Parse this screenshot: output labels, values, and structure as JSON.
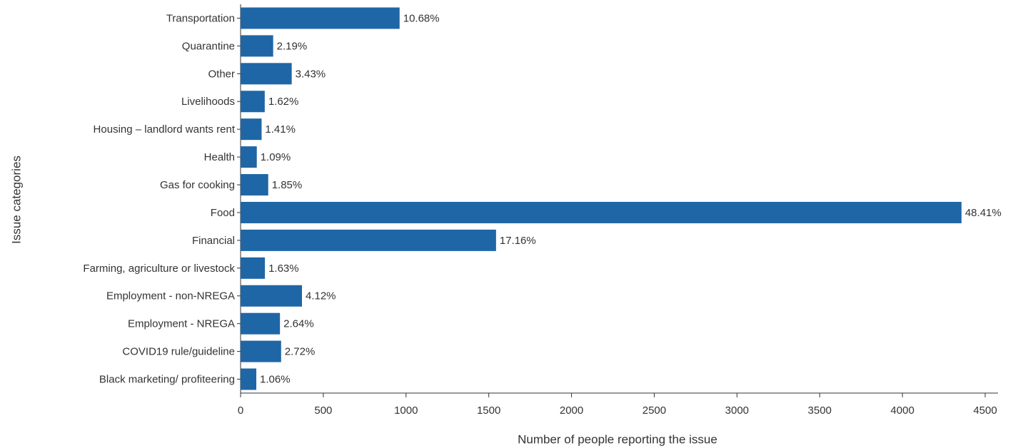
{
  "chart_data": {
    "type": "barh",
    "xlabel": "Number of people reporting the issue",
    "ylabel": "Issue categories",
    "categories": [
      "Transportation",
      "Quarantine",
      "Other",
      "Livelihoods",
      "Housing – landlord wants rent",
      "Health",
      "Gas for cooking",
      "Food",
      "Financial",
      "Farming, agriculture or livestock",
      "Employment - non-NREGA",
      "Employment - NREGA",
      "COVID19 rule/guideline",
      "Black marketing/ profiteering"
    ],
    "values": [
      961,
      197,
      309,
      146,
      127,
      98,
      167,
      4357,
      1544,
      147,
      371,
      238,
      245,
      95
    ],
    "percent_labels": [
      "10.68%",
      "2.19%",
      "3.43%",
      "1.62%",
      "1.41%",
      "1.09%",
      "1.85%",
      "48.41%",
      "17.16%",
      "1.63%",
      "4.12%",
      "2.64%",
      "2.72%",
      "1.06%"
    ],
    "color": "#1f66a6",
    "xlim": [
      0,
      4500
    ],
    "xticks": [
      0,
      500,
      1000,
      1500,
      2000,
      2500,
      3000,
      3500,
      4000,
      4500
    ]
  }
}
